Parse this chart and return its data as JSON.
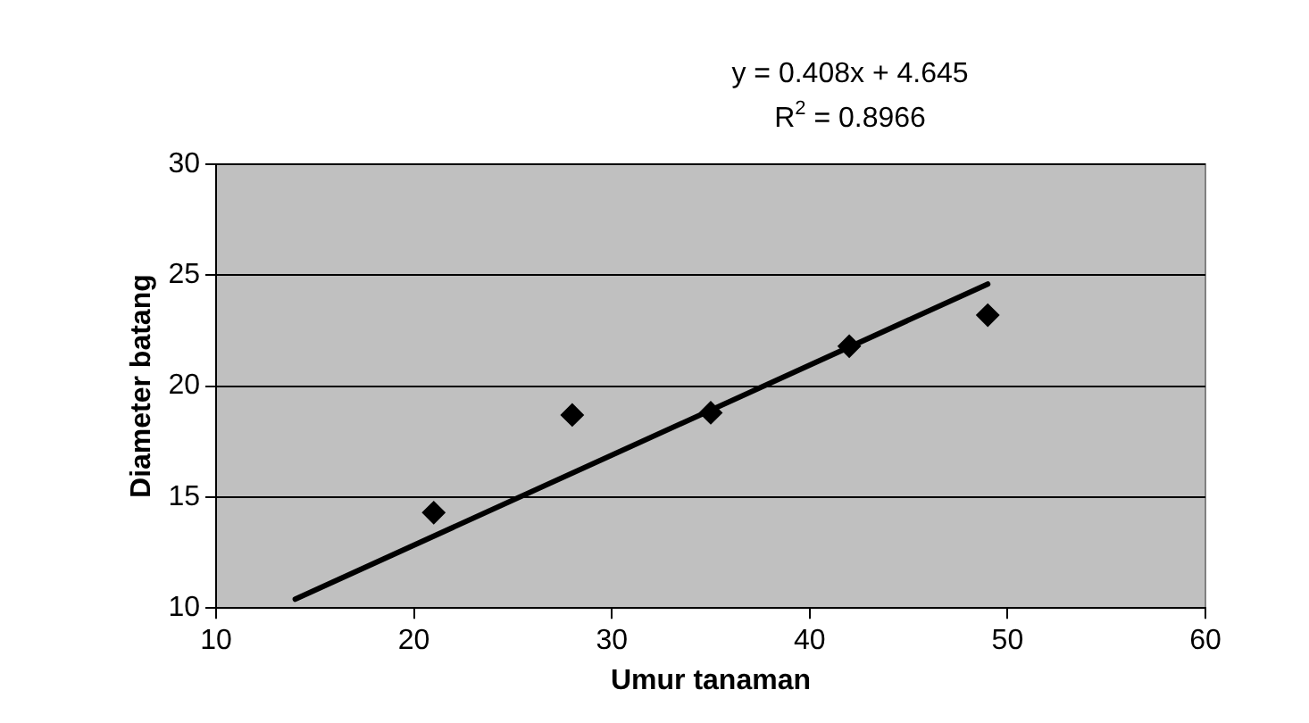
{
  "chart_data": {
    "type": "scatter",
    "xlabel": "Umur tanaman",
    "ylabel": "Diameter batang",
    "annotations": [
      "y = 0.408x + 4.645",
      "R$^{2}$ = 0.8966"
    ],
    "xlim": [
      10,
      60
    ],
    "xticks": [
      10,
      20,
      30,
      40,
      50,
      60
    ],
    "ylim": [
      10,
      30
    ],
    "yticks": [
      10,
      15,
      20,
      25,
      30
    ],
    "grid": "y",
    "legend": false,
    "marker": "diamond",
    "series": [
      {
        "type": "scatter",
        "color": "#000000",
        "x": [
          21,
          28,
          35,
          42,
          49
        ],
        "values": [
          14.3,
          18.7,
          18.8,
          21.8,
          23.2
        ]
      },
      {
        "type": "line",
        "color": "#000000",
        "x": [
          14,
          49
        ],
        "values": [
          10.4,
          24.6
        ],
        "marker": "none",
        "line_style": "solid"
      }
    ]
  }
}
